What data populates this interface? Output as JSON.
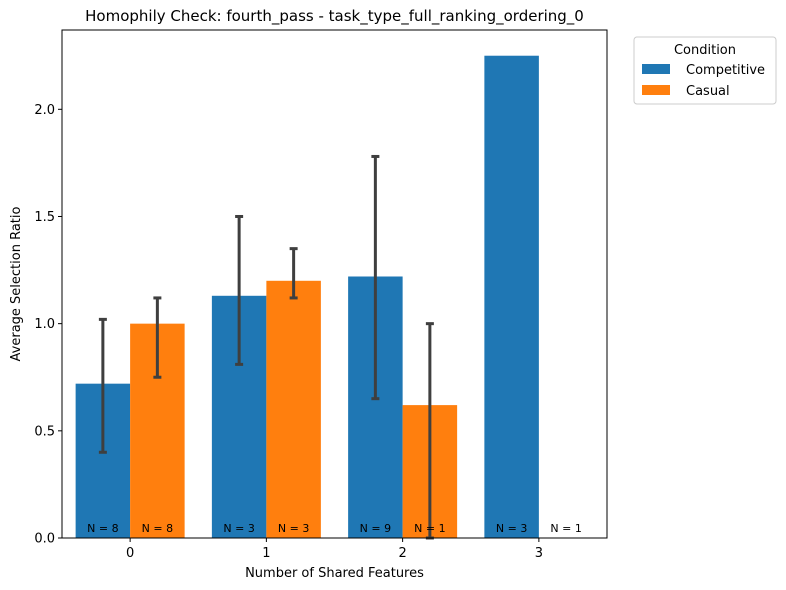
{
  "chart_data": {
    "type": "bar",
    "title": "Homophily Check: fourth_pass - task_type_full_ranking_ordering_0",
    "xlabel": "Number of Shared Features",
    "ylabel": "Average Selection Ratio",
    "categories": [
      "0",
      "1",
      "2",
      "3"
    ],
    "ylim": [
      0,
      2.37
    ],
    "yticks": [
      "0.0",
      "0.5",
      "1.0",
      "1.5",
      "2.0"
    ],
    "ytick_values": [
      0,
      0.5,
      1.0,
      1.5,
      2.0
    ],
    "grid": false,
    "legend": {
      "title": "Condition",
      "placement": "outside-top-right"
    },
    "series": [
      {
        "name": "Competitive",
        "color": "#1f77b4",
        "values": [
          0.72,
          1.13,
          1.22,
          2.25
        ],
        "err_low": [
          0.4,
          0.81,
          0.65,
          null
        ],
        "err_high": [
          1.02,
          1.5,
          1.78,
          null
        ],
        "n_labels": [
          "N = 8",
          "N = 3",
          "N = 9",
          "N = 3"
        ]
      },
      {
        "name": "Casual",
        "color": "#ff7f0e",
        "values": [
          1.0,
          1.2,
          0.62,
          null
        ],
        "err_low": [
          0.75,
          1.12,
          0.0,
          null
        ],
        "err_high": [
          1.12,
          1.35,
          1.0,
          null
        ],
        "n_labels": [
          "N = 8",
          "N = 3",
          "N = 1",
          "N = 1"
        ]
      }
    ],
    "error_bar_color": "#3f3f3f"
  }
}
